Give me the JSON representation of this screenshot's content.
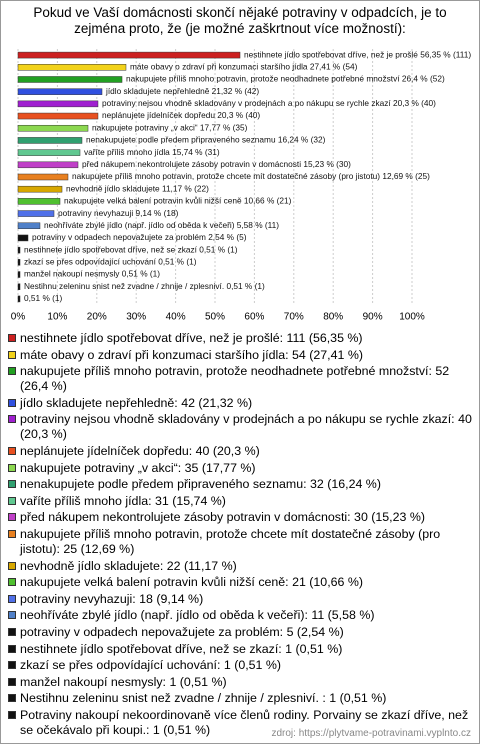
{
  "chart_data": {
    "type": "hbar",
    "title": "Pokud ve Vaší domácnosti skončí nějaké potraviny v odpadcích, je to zejména proto, že (je možné zaškrtnout více možností):",
    "values": [
      56.35,
      27.41,
      26.4,
      21.32,
      20.3,
      20.3,
      17.77,
      16.24,
      15.74,
      15.23,
      12.69,
      11.17,
      10.66,
      9.14,
      5.58,
      2.54,
      0.51,
      0.51,
      0.51,
      0.51,
      0.51
    ],
    "value_labels": [
      "nestihnete jídlo spotřebovat dříve, než je prošlé 56,35 % (111)",
      "máte obavy o zdraví při konzumaci staršího jídla 27,41 % (54)",
      "nakupujete příliš mnoho potravin, protože neodhadnete potřebné množství 26,4 % (52)",
      "jídlo skladujete nepřehledně 21,32 % (42)",
      "potraviny nejsou vhodně skladovány v prodejnách a po nákupu se rychle zkazí 20,3 % (40)",
      "neplánujete jídelníček dopředu 20,3 % (40)",
      "nakupujete potraviny „v akci“ 17,77 % (35)",
      "nenakupujete podle předem připraveného seznamu 16,24 % (32)",
      "vaříte příliš mnoho jídla 15,74 % (31)",
      "před nákupem nekontrolujete zásoby potravin v domácnosti 15,23 % (30)",
      "nakupujete příliš mnoho potravin, protože chcete mít dostatečné zásoby (pro jistotu) 12,69 % (25)",
      "nevhodně jídlo skladujete 11,17 % (22)",
      "nakupujete velká balení potravin kvůli nižší ceně 10,66 % (21)",
      "potraviny nevyhazuji 9,14 % (18)",
      "neohříváte zbylé jídlo (např. jídlo od oběda k večeři) 5,58 % (11)",
      "potraviny v odpadech nepovažujete za problém 2,54 % (5)",
      "nestihnete jídlo spotřebovat dříve, než se zkazí 0,51 % (1)",
      "zkazí se přes odpovídající uchování 0,51 % (1)",
      "manžel nakoupí nesmysly 0,51 % (1)",
      "Nestihnu zeleninu snist než zvadne / zhnije / zplesniví.  0,51 % (1)",
      "0,51 % (1)"
    ],
    "legend_labels": [
      "nestihnete jídlo spotřebovat dříve, než je prošlé: 111 (56,35 %)",
      "máte obavy o zdraví při konzumaci staršího jídla: 54 (27,41 %)",
      "nakupujete příliš mnoho potravin, protože neodhadnete potřebné množství: 52 (26,4 %)",
      "jídlo skladujete nepřehledně: 42 (21,32 %)",
      "potraviny nejsou vhodně skladovány v prodejnách a po nákupu se rychle zkazí: 40 (20,3 %)",
      "neplánujete jídelníček dopředu: 40 (20,3 %)",
      "nakupujete potraviny „v akci“: 35 (17,77 %)",
      "nenakupujete podle předem připraveného seznamu: 32 (16,24 %)",
      "vaříte příliš mnoho jídla: 31 (15,74 %)",
      "před nákupem nekontrolujete zásoby potravin v domácnosti: 30 (15,23 %)",
      "nakupujete příliš mnoho potravin, protože chcete mít dostatečné zásoby (pro jistotu): 25 (12,69 %)",
      "nevhodně jídlo skladujete: 22 (11,17 %)",
      "nakupujete velká balení potravin kvůli nižší ceně: 21 (10,66 %)",
      "potraviny nevyhazuji: 18 (9,14 %)",
      "neohříváte zbylé jídlo (např. jídlo od oběda k večeři): 11 (5,58 %)",
      "potraviny v odpadech nepovažujete za problém: 5 (2,54 %)",
      "nestihnete jídlo spotřebovat dříve, než se zkazí: 1 (0,51 %)",
      "zkazí se přes odpovídající uchování: 1 (0,51 %)",
      "manžel nakoupí nesmysly: 1 (0,51 %)",
      "Nestihnu zeleninu snist než zvadne / zhnije / zplesniví. : 1 (0,51 %)",
      "Potraviny nakoupí nekoordinovaně více členů rodiny. Porvainy se zkazí dříve, než se očekávalo při koupi.: 1 (0,51 %)"
    ],
    "colors": [
      "#cc2020",
      "#f2d21a",
      "#22a022",
      "#3050e0",
      "#a020d0",
      "#e85020",
      "#8cd850",
      "#30a070",
      "#60c890",
      "#c040c8",
      "#e88020",
      "#d8a800",
      "#50c030",
      "#5070e8",
      "#5080c8",
      "#111111",
      "#111111",
      "#111111",
      "#111111",
      "#111111",
      "#111111"
    ],
    "xlim": [
      0,
      100
    ],
    "xticks": [
      {
        "value": 0,
        "label": "0%"
      },
      {
        "value": 10,
        "label": "10%"
      },
      {
        "value": 20,
        "label": "20%"
      },
      {
        "value": 30,
        "label": "30%"
      },
      {
        "value": 40,
        "label": "40%"
      },
      {
        "value": 50,
        "label": "50%"
      },
      {
        "value": 60,
        "label": "60%"
      },
      {
        "value": 70,
        "label": "70%"
      },
      {
        "value": 80,
        "label": "80%"
      },
      {
        "value": 90,
        "label": "90%"
      },
      {
        "value": 100,
        "label": "100%"
      }
    ],
    "grid": true,
    "source": "zdroj: https://plytvame-potravinami.vyplnto.cz"
  }
}
